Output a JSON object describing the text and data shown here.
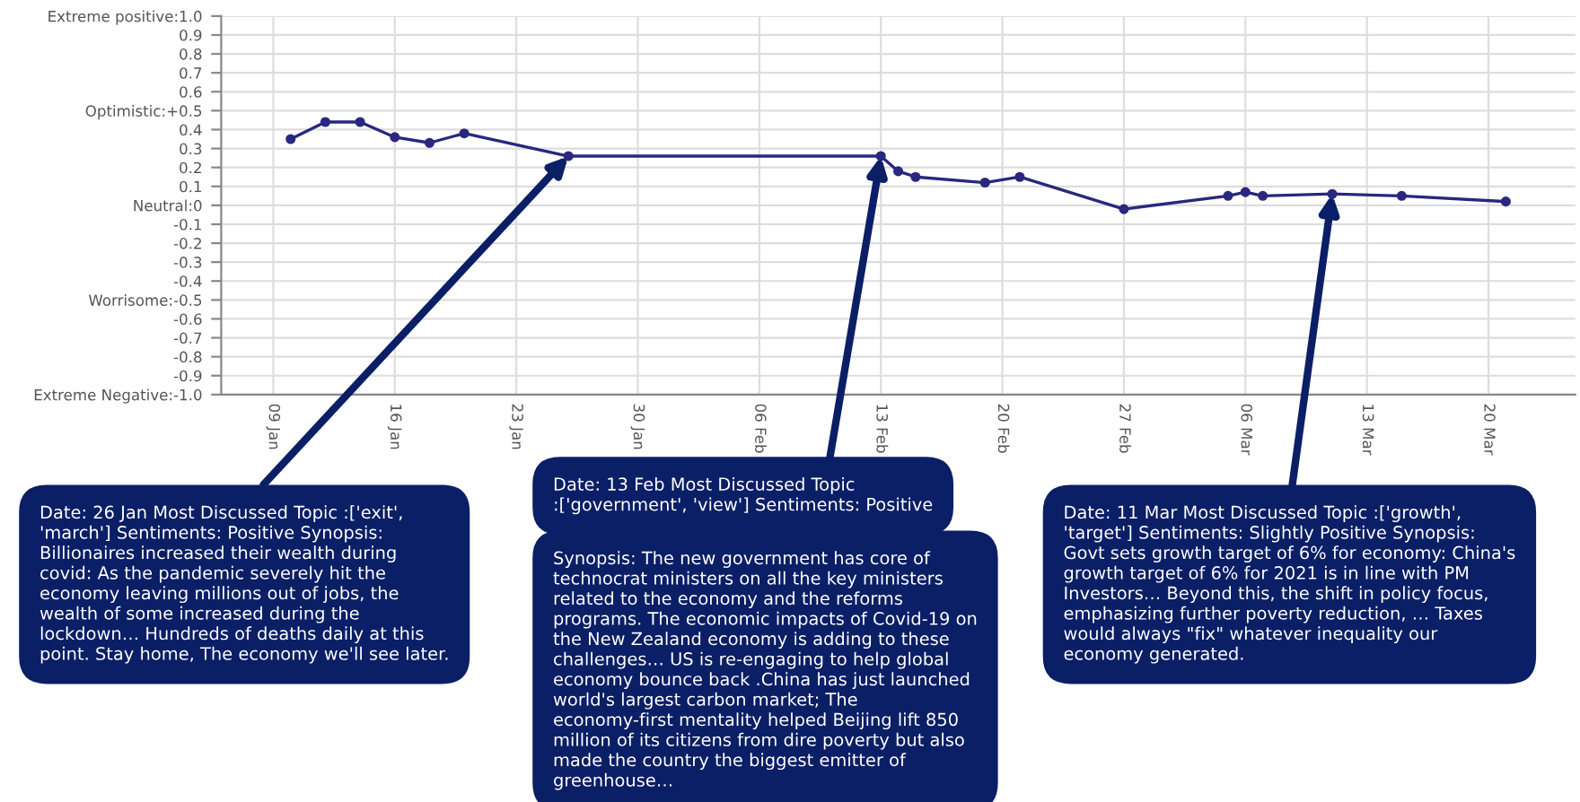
{
  "chart_data": {
    "type": "line",
    "x": [
      "2021-01-10",
      "2021-01-12",
      "2021-01-14",
      "2021-01-16",
      "2021-01-18",
      "2021-01-20",
      "2021-01-26",
      "2021-02-13",
      "2021-02-14",
      "2021-02-15",
      "2021-02-19",
      "2021-02-21",
      "2021-02-27",
      "2021-03-05",
      "2021-03-06",
      "2021-03-07",
      "2021-03-11",
      "2021-03-15",
      "2021-03-21"
    ],
    "series": [
      {
        "color": "#28287f",
        "values": [
          0.35,
          0.44,
          0.44,
          0.36,
          0.33,
          0.38,
          0.26,
          0.26,
          0.18,
          0.15,
          0.12,
          0.15,
          -0.02,
          0.05,
          0.07,
          0.05,
          0.06,
          0.05,
          0.02
        ]
      }
    ],
    "marker": "circle",
    "line_style": "solid",
    "grid": true,
    "legend": false,
    "xlim": [
      "2021-01-06",
      "2021-03-25"
    ],
    "xticks": [
      {
        "value": "2021-01-09",
        "label": "09 Jan"
      },
      {
        "value": "2021-01-16",
        "label": "16 Jan"
      },
      {
        "value": "2021-01-23",
        "label": "23 Jan"
      },
      {
        "value": "2021-01-30",
        "label": "30 Jan"
      },
      {
        "value": "2021-02-06",
        "label": "06 Feb"
      },
      {
        "value": "2021-02-13",
        "label": "13 Feb"
      },
      {
        "value": "2021-02-20",
        "label": "20 Feb"
      },
      {
        "value": "2021-02-27",
        "label": "27 Feb"
      },
      {
        "value": "2021-03-06",
        "label": "06 Mar"
      },
      {
        "value": "2021-03-13",
        "label": "13 Mar"
      },
      {
        "value": "2021-03-20",
        "label": "20 Mar"
      }
    ],
    "ylim": [
      -1.0,
      1.0
    ],
    "yticks": [
      {
        "value": 1.0,
        "label": "Extreme positive:1.0"
      },
      0.9,
      0.8,
      0.7,
      0.6,
      {
        "value": 0.5,
        "label": "Optimistic:+0.5"
      },
      0.4,
      0.3,
      0.2,
      0.1,
      {
        "value": 0,
        "label": "Neutral:0"
      },
      {
        "value": -0.1,
        "label": "-0.1"
      },
      {
        "value": -0.2,
        "label": "-0.2"
      },
      {
        "value": -0.3,
        "label": "-0.3"
      },
      {
        "value": -0.4,
        "label": "-0.4"
      },
      {
        "value": -0.5,
        "label": "Worrisome:-0.5"
      },
      {
        "value": -0.6,
        "label": "-0.6"
      },
      {
        "value": -0.7,
        "label": "-0.7"
      },
      {
        "value": -0.8,
        "label": "-0.8"
      },
      {
        "value": -0.9,
        "label": "-0.9"
      },
      {
        "value": -1.0,
        "label": "Extreme Negative:-1.0"
      }
    ],
    "annotations": [
      {
        "text": "Date: 26 Jan Most Discussed Topic :['exit', 'march'] Sentiments: Positive Synopsis: Billionaires increased their wealth during covid: As the pandemic severely hit the economy leaving millions out of jobs, the wealth of some increased during the lockdown… Hundreds of deaths daily at this point. Stay home, The economy we'll see later.",
        "x": "2021-01-26",
        "y": 0.26
      },
      {
        "text": "Date: 13 Feb Most Discussed Topic :['government', 'view'] Sentiments: Positive",
        "x": "2021-02-13",
        "y": 0.26
      },
      "Synopsis: The new government has core of technocrat ministers on all the key ministers related to the economy and the reforms programs. The economic impacts of Covid-19 on the New Zealand economy is adding to these challenges… US is re-engaging to help global economy bounce back .China has just launched world's largest carbon market; The economy-first mentality helped Beijing lift 850 million of its citizens from dire poverty but also made the country the biggest emitter of greenhouse…",
      {
        "text": "Date: 11 Mar Most Discussed Topic :['growth', 'target'] Sentiments: Slightly Positive Synopsis: Govt sets growth target of 6% for economy: China's growth target of 6% for 2021 is in line with PM Investors… Beyond this, the shift in policy focus, emphasizing further poverty reduction, … Taxes would always \"fix\" whatever inequality our economy generated.",
        "x": "2021-03-11",
        "y": 0.06
      }
    ]
  }
}
